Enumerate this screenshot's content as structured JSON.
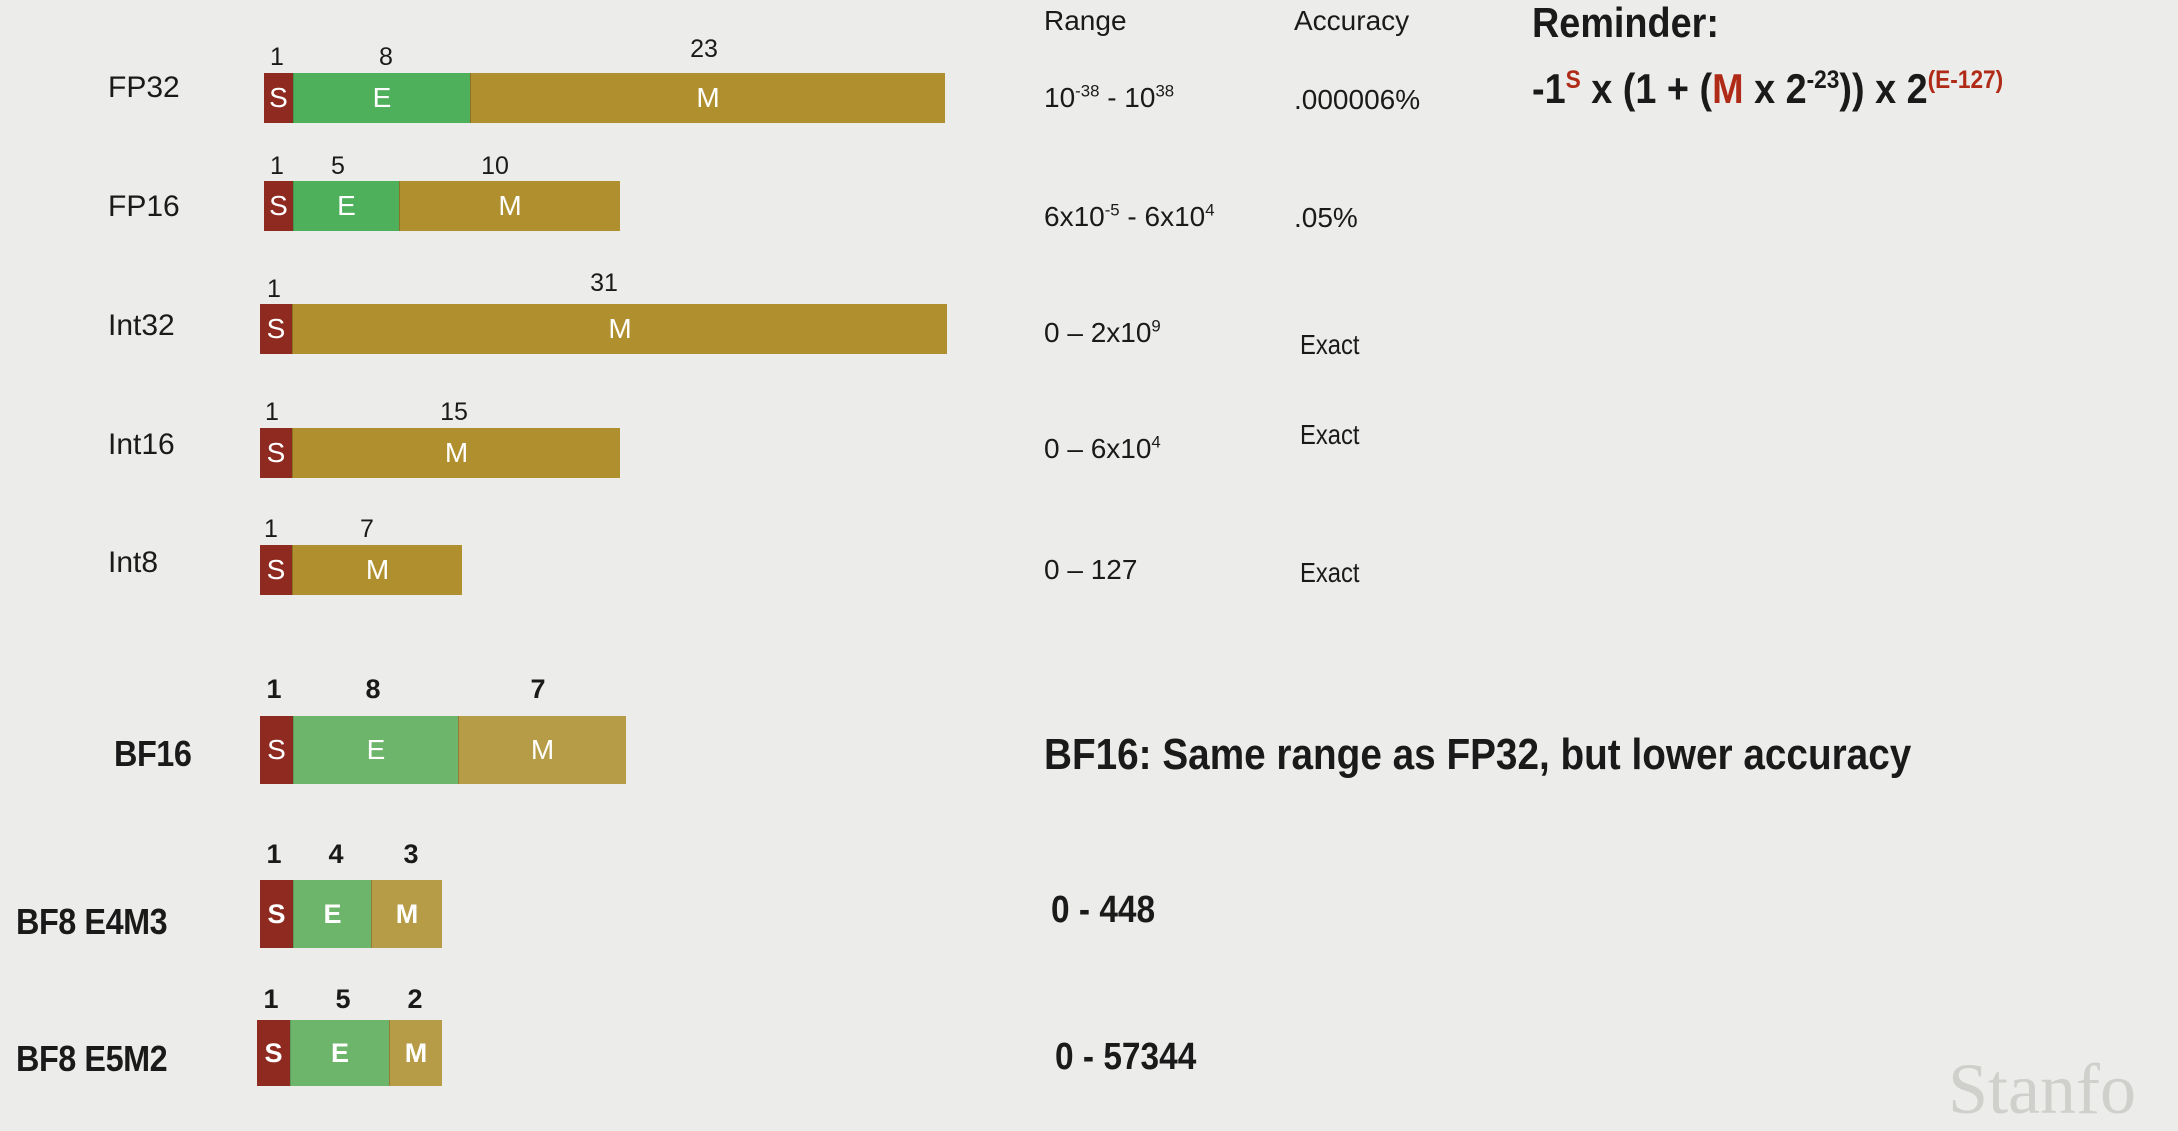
{
  "headers": {
    "range": "Range",
    "accuracy": "Accuracy"
  },
  "reminder": {
    "title": "Reminder:",
    "formula_parts": [
      "-1",
      "S",
      " x (1 + (",
      "M",
      " x 2",
      "-23",
      ")) x 2",
      "(E-127)"
    ]
  },
  "formats": [
    {
      "label": "FP32",
      "bits": [
        "1",
        "8",
        "23"
      ],
      "segments": [
        "S",
        "E",
        "M"
      ],
      "range": [
        "10",
        "-38",
        " - 10",
        "38"
      ],
      "accuracy": ".000006%"
    },
    {
      "label": "FP16",
      "bits": [
        "1",
        "5",
        "10"
      ],
      "segments": [
        "S",
        "E",
        "M"
      ],
      "range": [
        "6x10",
        "-5",
        " - 6x10",
        "4"
      ],
      "accuracy": ".05%"
    },
    {
      "label": "Int32",
      "bits": [
        "1",
        "31"
      ],
      "segments": [
        "S",
        "M"
      ],
      "range": [
        "0 – 2x10",
        "9"
      ],
      "accuracy": "Exact"
    },
    {
      "label": "Int16",
      "bits": [
        "1",
        "15"
      ],
      "segments": [
        "S",
        "M"
      ],
      "range": [
        "0 – 6x10",
        "4"
      ],
      "accuracy": "Exact"
    },
    {
      "label": "Int8",
      "bits": [
        "1",
        "7"
      ],
      "segments": [
        "S",
        "M"
      ],
      "range": [
        "0 – 127"
      ],
      "accuracy": "Exact"
    },
    {
      "label": "BF16",
      "bits": [
        "1",
        "8",
        "7"
      ],
      "segments": [
        "S",
        "E",
        "M"
      ],
      "note": "BF16: Same range as FP32, but lower accuracy"
    },
    {
      "label": "BF8 E4M3",
      "bits": [
        "1",
        "4",
        "3"
      ],
      "segments": [
        "S",
        "E",
        "M"
      ],
      "range": [
        "0 - 448"
      ]
    },
    {
      "label": "BF8 E5M2",
      "bits": [
        "1",
        "5",
        "2"
      ],
      "segments": [
        "S",
        "E",
        "M"
      ],
      "range": [
        "0 - 57344"
      ]
    }
  ],
  "watermark": "Stanfo"
}
